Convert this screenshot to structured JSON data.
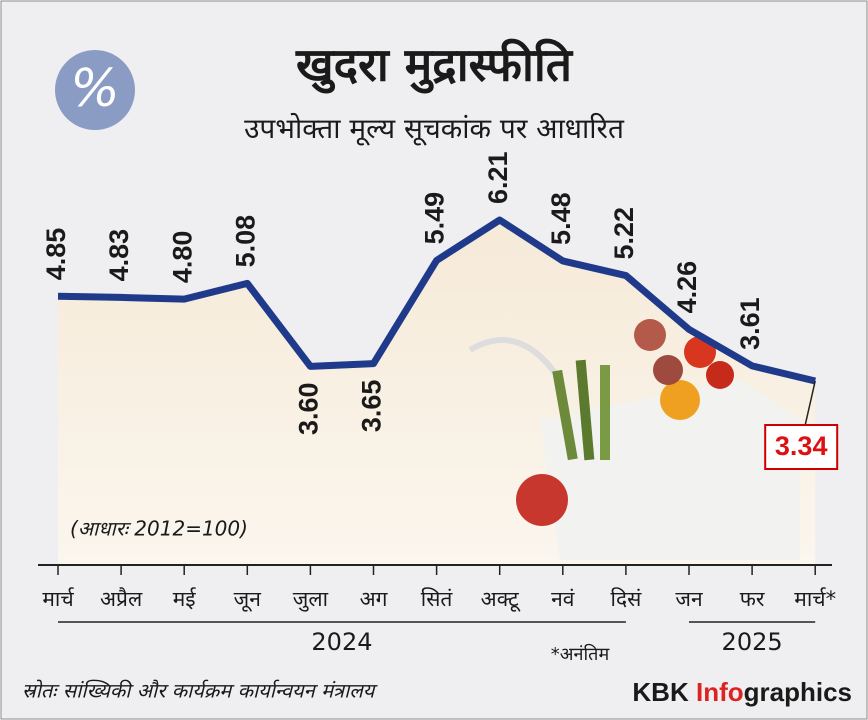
{
  "chart_data": {
    "type": "line",
    "title": "खुदरा मुद्रास्फीति",
    "subtitle": "उपभोक्ता मूल्य सूचकांक पर आधारित",
    "annotation": "(आधारः 2012=100)",
    "categories": [
      "मार्च",
      "अप्रैल",
      "मई",
      "जून",
      "जुला",
      "अग",
      "सितं",
      "अक्टू",
      "नवं",
      "दिसं",
      "जन",
      "फर",
      "मार्च*"
    ],
    "values": [
      4.85,
      4.83,
      4.8,
      5.08,
      3.6,
      3.65,
      5.49,
      6.21,
      5.48,
      5.22,
      4.26,
      3.61,
      3.34
    ],
    "value_labels": [
      "4.85",
      "4.83",
      "4.80",
      "5.08",
      "3.60",
      "3.65",
      "5.49",
      "6.21",
      "5.48",
      "5.22",
      "4.26",
      "3.61",
      "3.34"
    ],
    "color": "#1f3a8a",
    "years": [
      "2024",
      "2025"
    ],
    "footnote": "*अनंतिम",
    "source": "स्रोतः सांख्यिकी और कार्यक्रम कार्यान्वयन मंत्रालय",
    "brand": [
      "KBK ",
      "Info",
      "graphics"
    ]
  }
}
